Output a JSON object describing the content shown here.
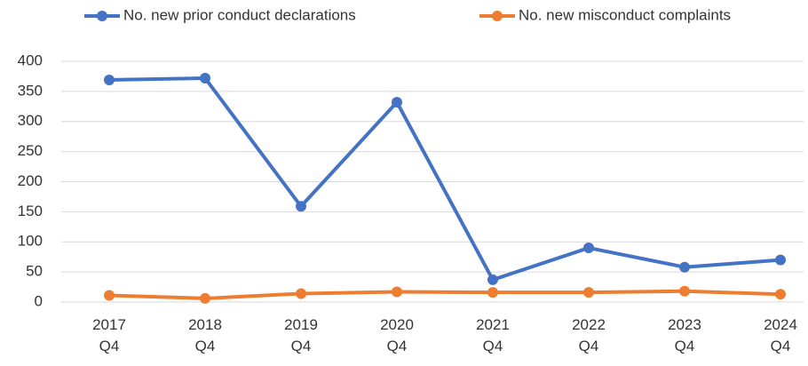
{
  "chart_data": {
    "type": "line",
    "categories": [
      "2017\nQ4",
      "2018\nQ4",
      "2019\nQ4",
      "2020\nQ4",
      "2021\nQ4",
      "2022\nQ4",
      "2023\nQ4",
      "2024\nQ4"
    ],
    "series": [
      {
        "name": "No. new prior conduct declarations",
        "color": "#4472c4",
        "values": [
          369,
          372,
          159,
          332,
          37,
          90,
          58,
          70
        ]
      },
      {
        "name": "No. new misconduct complaints",
        "color": "#ed7d31",
        "values": [
          11,
          6,
          14,
          17,
          16,
          16,
          18,
          13
        ]
      }
    ],
    "ylim": [
      0,
      400
    ],
    "yticks": [
      0,
      50,
      100,
      150,
      200,
      250,
      300,
      350,
      400
    ],
    "grid": true,
    "legend": "top"
  }
}
